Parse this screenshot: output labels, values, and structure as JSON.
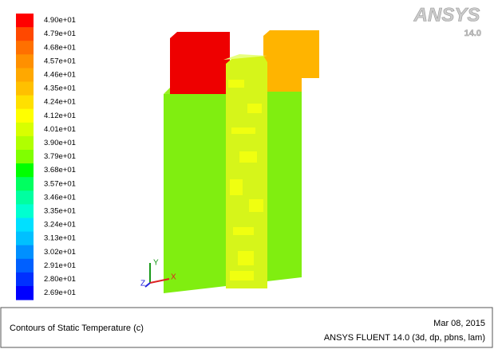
{
  "legend": {
    "labels": [
      "4.90e+01",
      "4.79e+01",
      "4.68e+01",
      "4.57e+01",
      "4.46e+01",
      "4.35e+01",
      "4.24e+01",
      "4.12e+01",
      "4.01e+01",
      "3.90e+01",
      "3.79e+01",
      "3.68e+01",
      "3.57e+01",
      "3.46e+01",
      "3.35e+01",
      "3.24e+01",
      "3.13e+01",
      "3.02e+01",
      "2.91e+01",
      "2.80e+01",
      "2.69e+01"
    ],
    "colors": [
      "#ff0000",
      "#ff4800",
      "#ff7000",
      "#ff9000",
      "#ffa800",
      "#ffc000",
      "#ffe000",
      "#ffff00",
      "#d8ff00",
      "#b0ff00",
      "#80ff00",
      "#00ff00",
      "#00ff60",
      "#00ffa0",
      "#00ffd0",
      "#00e0ff",
      "#00c0ff",
      "#0090ff",
      "#0060ff",
      "#0030ff",
      "#0000ff"
    ]
  },
  "logo": {
    "brand": "ANSYS",
    "version": "14.0"
  },
  "axes": {
    "y": "Y",
    "z": "Z",
    "x": "X"
  },
  "footer": {
    "title": "Contours of Static Temperature (c)",
    "date": "Mar 08, 2015",
    "software": "ANSYS FLUENT 14.0 (3d, dp, pbns, lam)"
  }
}
